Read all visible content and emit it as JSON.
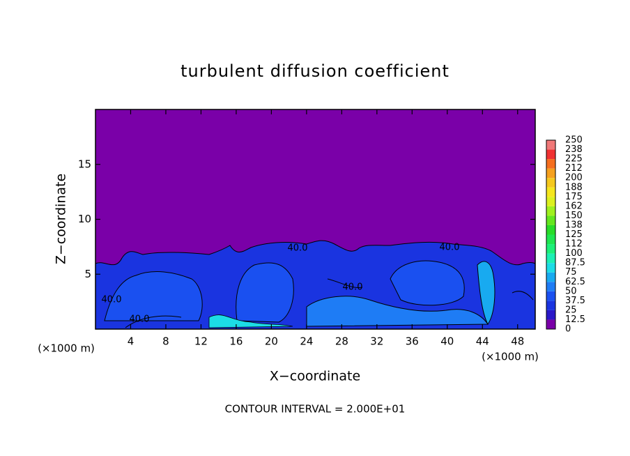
{
  "chart_data": {
    "type": "contour",
    "title": "turbulent diffusion coefficient",
    "xlabel": "X−coordinate",
    "ylabel": "Z−coordinate",
    "xunit_label": "(×1000 m)",
    "footer": "CONTOUR INTERVAL = 2.000E+01",
    "contour_label": "40.0",
    "xlim": [
      0,
      50
    ],
    "ylim": [
      0,
      20
    ],
    "xticks": [
      4,
      8,
      12,
      16,
      20,
      24,
      28,
      32,
      36,
      40,
      44,
      48
    ],
    "yticks": [
      5,
      10,
      15
    ],
    "colorbar": {
      "levels": [
        0,
        12.5,
        25,
        37.5,
        50,
        62.5,
        75,
        87.5,
        100,
        112,
        125,
        138,
        150,
        162,
        175,
        188,
        200,
        212,
        225,
        238,
        250
      ],
      "colors": [
        "#7a00a8",
        "#2a18c8",
        "#1a34e0",
        "#1a50f0",
        "#1e7cf5",
        "#18aaf0",
        "#1cdce6",
        "#1cf0b4",
        "#1cf078",
        "#1ee650",
        "#28dc28",
        "#64e61e",
        "#a0f01e",
        "#dcf01e",
        "#f5e61e",
        "#f5c81e",
        "#f5a01e",
        "#f56e1e",
        "#f03232",
        "#f07878"
      ]
    }
  }
}
